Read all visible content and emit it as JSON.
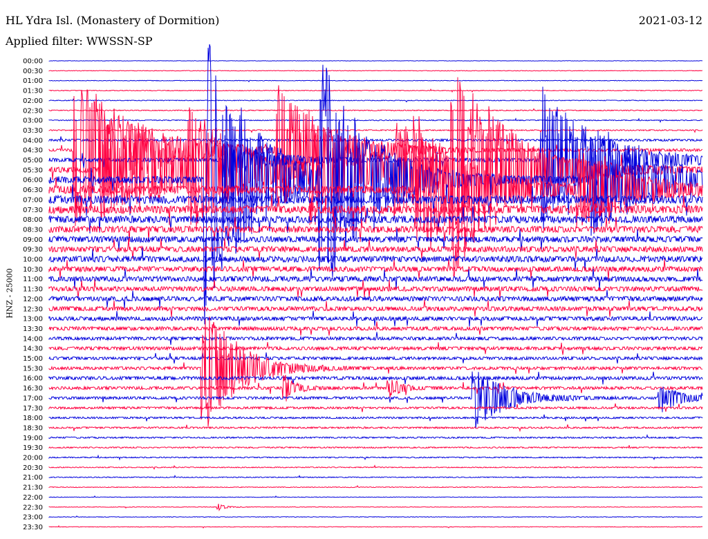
{
  "header": {
    "title": "HL Ydra Isl. (Monastery of Dormition)",
    "date": "2021-03-12",
    "filter": "Applied filter: WWSSN-SP"
  },
  "chart_data": {
    "type": "line",
    "title": "HL Ydra Isl. (Monastery of Dormition)",
    "ylabel": "HNZ - 25000",
    "colors": [
      "#0000dd",
      "#ff0040"
    ],
    "rows": [
      "00:00",
      "00:30",
      "01:00",
      "01:30",
      "02:00",
      "02:30",
      "03:00",
      "03:30",
      "04:00",
      "04:30",
      "05:00",
      "05:30",
      "06:00",
      "06:30",
      "07:00",
      "07:30",
      "08:00",
      "08:30",
      "09:00",
      "09:30",
      "10:00",
      "10:30",
      "11:00",
      "11:30",
      "12:00",
      "12:30",
      "13:00",
      "13:30",
      "14:00",
      "14:30",
      "15:00",
      "15:30",
      "16:00",
      "16:30",
      "17:00",
      "17:30",
      "18:00",
      "18:30",
      "19:00",
      "19:30",
      "20:00",
      "20:30",
      "21:00",
      "21:30",
      "22:00",
      "22:30",
      "23:00",
      "23:30"
    ],
    "noise_levels": [
      0.2,
      0.3,
      0.3,
      0.4,
      0.4,
      0.5,
      0.5,
      0.6,
      1.2,
      1.5,
      2.2,
      3.0,
      3.8,
      4.2,
      4.5,
      4.3,
      3.8,
      3.5,
      3.2,
      3.0,
      3.2,
      2.8,
      2.8,
      2.6,
      2.6,
      2.4,
      2.2,
      2.0,
      1.8,
      1.8,
      1.6,
      1.6,
      1.8,
      1.6,
      1.4,
      1.2,
      1.0,
      0.9,
      0.8,
      0.7,
      0.6,
      0.5,
      0.5,
      0.4,
      0.3,
      0.3,
      0.3,
      0.3
    ],
    "events": [
      {
        "row": 9,
        "x": 0.04,
        "amp": 115,
        "decay": 0.09,
        "tail": 95
      },
      {
        "row": 11,
        "x": 0.08,
        "amp": 70,
        "decay": 0.1,
        "tail": 55
      },
      {
        "row": 11,
        "x": 0.135,
        "amp": 30,
        "decay": 0.07,
        "tail": 20
      },
      {
        "row": 11,
        "x": 0.215,
        "amp": 75,
        "decay": 0.08,
        "tail": 65
      },
      {
        "row": 12,
        "x": 0.24,
        "amp": 220,
        "decay": 0.07,
        "tail": 120
      },
      {
        "row": 10,
        "x": 0.27,
        "amp": 25,
        "decay": 0.07,
        "tail": 10
      },
      {
        "row": 9,
        "x": 0.35,
        "amp": 90,
        "decay": 0.08,
        "tail": 60
      },
      {
        "row": 11,
        "x": 0.4,
        "amp": 80,
        "decay": 0.08,
        "tail": 70
      },
      {
        "row": 12,
        "x": 0.415,
        "amp": 175,
        "decay": 0.07,
        "tail": 100
      },
      {
        "row": 11,
        "x": 0.53,
        "amp": 60,
        "decay": 0.08,
        "tail": 50
      },
      {
        "row": 13,
        "x": 0.56,
        "amp": 110,
        "decay": 0.08,
        "tail": 90
      },
      {
        "row": 11,
        "x": 0.615,
        "amp": 160,
        "decay": 0.08,
        "tail": 110
      },
      {
        "row": 10,
        "x": 0.755,
        "amp": 105,
        "decay": 0.08,
        "tail": 95
      },
      {
        "row": 12,
        "x": 0.83,
        "amp": 80,
        "decay": 0.08,
        "tail": 70
      },
      {
        "row": 13,
        "x": 0.81,
        "amp": 55,
        "decay": 0.08,
        "tail": 40
      },
      {
        "row": 31,
        "x": 0.235,
        "amp": 105,
        "decay": 0.05,
        "tail": 80
      },
      {
        "row": 34,
        "x": 0.65,
        "amp": 45,
        "decay": 0.05,
        "tail": 30
      },
      {
        "row": 34,
        "x": 0.935,
        "amp": 22,
        "decay": 0.03,
        "tail": 10
      },
      {
        "row": 33,
        "x": 0.36,
        "amp": 18,
        "decay": 0.02,
        "tail": 6
      },
      {
        "row": 33,
        "x": 0.52,
        "amp": 14,
        "decay": 0.02,
        "tail": 6
      },
      {
        "row": 45,
        "x": 0.26,
        "amp": 5,
        "decay": 0.01,
        "tail": 1
      }
    ]
  }
}
